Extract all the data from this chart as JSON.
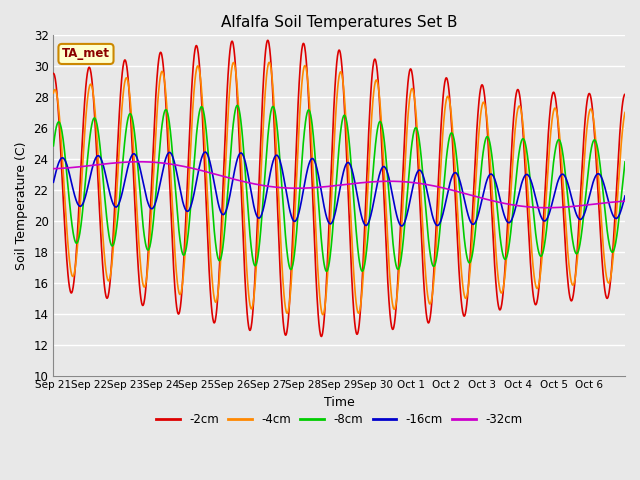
{
  "title": "Alfalfa Soil Temperatures Set B",
  "xlabel": "Time",
  "ylabel": "Soil Temperature (C)",
  "ylim": [
    10,
    32
  ],
  "xlim_days": 16,
  "bg_color": "#e8e8e8",
  "grid_color": "#ffffff",
  "series_colors": [
    "#dd0000",
    "#ff8800",
    "#00cc00",
    "#0000cc",
    "#cc00cc"
  ],
  "series_lw": [
    1.2,
    1.2,
    1.2,
    1.2,
    1.2
  ],
  "x_tick_labels": [
    "Sep 21",
    "Sep 22",
    "Sep 23",
    "Sep 24",
    "Sep 25",
    "Sep 26",
    "Sep 27",
    "Sep 28",
    "Sep 29",
    "Sep 30",
    "Oct 1",
    "Oct 2",
    "Oct 3",
    "Oct 4",
    "Oct 5",
    "Oct 6"
  ],
  "legend_labels": [
    "-2cm",
    "-4cm",
    "-8cm",
    "-16cm",
    "-32cm"
  ],
  "annotation_text": "TA_met",
  "annotation_bg": "#ffffcc",
  "annotation_border": "#cc8800"
}
